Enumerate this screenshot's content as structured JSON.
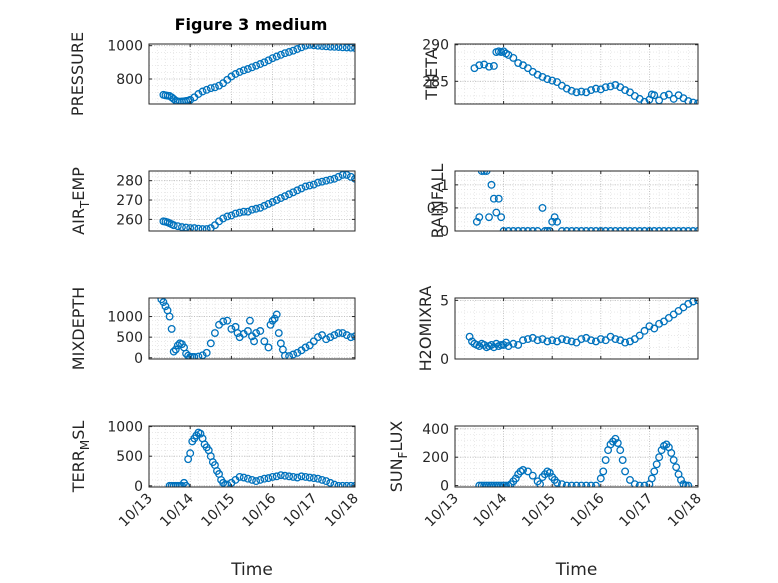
{
  "figure": {
    "title": "Figure 3 medium"
  },
  "chart_data": [
    {
      "type": "scatter",
      "id": "pressure",
      "ylabel": "PRESSURE",
      "title": "Figure 3 medium",
      "xlim": [
        0,
        5
      ],
      "ylim": [
        650,
        1010
      ],
      "yticks": [
        800,
        1000
      ],
      "yticklabels": [
        "800",
        "1000"
      ],
      "x": [
        0.35,
        0.4,
        0.45,
        0.5,
        0.55,
        0.6,
        0.65,
        0.7,
        0.75,
        0.8,
        0.85,
        0.9,
        0.95,
        1.0,
        1.1,
        1.2,
        1.3,
        1.4,
        1.5,
        1.6,
        1.7,
        1.8,
        1.9,
        2.0,
        2.1,
        2.2,
        2.3,
        2.4,
        2.5,
        2.6,
        2.7,
        2.8,
        2.9,
        3.0,
        3.1,
        3.2,
        3.3,
        3.4,
        3.5,
        3.6,
        3.7,
        3.8,
        3.9,
        4.0,
        4.1,
        4.2,
        4.3,
        4.4,
        4.5,
        4.6,
        4.7,
        4.8,
        4.9,
        5.0
      ],
      "y": [
        705,
        702,
        700,
        698,
        690,
        680,
        670,
        665,
        664,
        665,
        666,
        668,
        670,
        675,
        690,
        710,
        725,
        735,
        745,
        750,
        760,
        775,
        795,
        815,
        830,
        842,
        852,
        860,
        870,
        880,
        890,
        900,
        912,
        925,
        935,
        945,
        955,
        962,
        970,
        980,
        990,
        1000,
        1005,
        1003,
        1000,
        998,
        996,
        994,
        993,
        992,
        990,
        989,
        988,
        986
      ]
    },
    {
      "type": "scatter",
      "id": "theta",
      "ylabel": "THETA",
      "xlim": [
        0,
        5
      ],
      "ylim": [
        281.9,
        290.1
      ],
      "yticks": [
        285,
        290
      ],
      "yticklabels": [
        "285",
        "290"
      ],
      "x": [
        0.4,
        0.5,
        0.6,
        0.7,
        0.8,
        0.85,
        0.9,
        0.95,
        1.0,
        1.05,
        1.1,
        1.2,
        1.3,
        1.4,
        1.5,
        1.6,
        1.7,
        1.8,
        1.9,
        2.0,
        2.1,
        2.2,
        2.3,
        2.4,
        2.5,
        2.6,
        2.7,
        2.8,
        2.9,
        3.0,
        3.1,
        3.2,
        3.3,
        3.4,
        3.5,
        3.6,
        3.7,
        3.8,
        3.9,
        4.0,
        4.05,
        4.1,
        4.2,
        4.3,
        4.4,
        4.5,
        4.6,
        4.7,
        4.8,
        4.9,
        5.0
      ],
      "y": [
        286.8,
        287.2,
        287.3,
        287.0,
        287.1,
        289.0,
        289.1,
        289.0,
        289.1,
        288.8,
        288.6,
        288.2,
        287.5,
        287.2,
        286.8,
        286.3,
        285.9,
        285.6,
        285.3,
        285.1,
        284.9,
        284.4,
        284.0,
        283.7,
        283.5,
        283.6,
        283.5,
        283.8,
        284.0,
        283.9,
        284.2,
        284.3,
        284.5,
        284.2,
        283.8,
        283.5,
        283.0,
        282.6,
        282.2,
        282.5,
        283.2,
        283.1,
        282.4,
        283.0,
        283.2,
        282.6,
        283.1,
        282.7,
        282.3,
        282.1,
        282.0
      ]
    },
    {
      "type": "scatter",
      "id": "airtemp",
      "ylabel": "AIR",
      "ylabel_sub": "T",
      "ylabel_rest": "EMP",
      "xlim": [
        0,
        5
      ],
      "ylim": [
        254,
        285
      ],
      "yticks": [
        260,
        270,
        280
      ],
      "yticklabels": [
        "260",
        "270",
        "280"
      ],
      "x": [
        0.35,
        0.4,
        0.45,
        0.5,
        0.55,
        0.6,
        0.7,
        0.8,
        0.9,
        1.0,
        1.1,
        1.2,
        1.3,
        1.4,
        1.5,
        1.6,
        1.7,
        1.8,
        1.9,
        2.0,
        2.1,
        2.2,
        2.3,
        2.4,
        2.5,
        2.6,
        2.7,
        2.8,
        2.9,
        3.0,
        3.1,
        3.2,
        3.3,
        3.4,
        3.5,
        3.6,
        3.7,
        3.8,
        3.9,
        4.0,
        4.1,
        4.2,
        4.3,
        4.4,
        4.5,
        4.6,
        4.7,
        4.8,
        4.9,
        5.0
      ],
      "y": [
        259,
        258.8,
        258.5,
        258,
        257.5,
        257,
        256.5,
        256,
        255.8,
        255.5,
        255.5,
        255.2,
        255,
        255,
        255.5,
        257,
        259,
        260.5,
        261.5,
        262,
        263,
        263.5,
        264,
        264,
        265,
        265.5,
        266,
        267,
        268,
        269,
        270,
        271,
        272,
        273,
        274,
        275,
        276,
        277,
        277.5,
        278,
        279,
        279.5,
        280,
        280.5,
        281,
        282,
        283,
        283,
        282,
        281
      ]
    },
    {
      "type": "scatter",
      "id": "rainfall",
      "ylabel": "RAINFALL",
      "xlim": [
        0,
        5
      ],
      "ylim": [
        0,
        1.3
      ],
      "yticks": [
        0,
        0.5,
        1
      ],
      "yticklabels": [
        "0",
        "0.5",
        "1"
      ],
      "x": [
        0.45,
        0.5,
        0.55,
        0.6,
        0.65,
        0.7,
        0.75,
        0.8,
        0.85,
        0.9,
        0.95,
        1.0,
        1.1,
        1.2,
        1.3,
        1.4,
        1.5,
        1.6,
        1.7,
        1.8,
        1.85,
        1.9,
        1.95,
        2.0,
        2.05,
        2.1,
        2.2,
        2.3,
        2.4,
        2.5,
        2.6,
        2.7,
        2.8,
        2.9,
        3.0,
        3.1,
        3.2,
        3.3,
        3.4,
        3.5,
        3.6,
        3.7,
        3.8,
        3.9,
        4.0,
        4.1,
        4.2,
        4.3,
        4.4,
        4.5,
        4.6,
        4.7,
        4.8,
        4.9,
        5.0
      ],
      "y": [
        0.2,
        0.3,
        1.3,
        1.3,
        1.3,
        0.3,
        1.0,
        0.7,
        0.4,
        0.7,
        0.3,
        0,
        0,
        0,
        0,
        0,
        0,
        0,
        0,
        0.5,
        0,
        0,
        0,
        0.2,
        0.3,
        0.2,
        0,
        0,
        0,
        0,
        0,
        0,
        0,
        0,
        0,
        0,
        0,
        0,
        0,
        0,
        0,
        0,
        0,
        0,
        0,
        0,
        0,
        0,
        0,
        0,
        0,
        0,
        0,
        0,
        0
      ]
    },
    {
      "type": "scatter",
      "id": "mixdepth",
      "ylabel": "MIXDEPTH",
      "xlim": [
        0,
        5
      ],
      "ylim": [
        -30,
        1450
      ],
      "yticks": [
        0,
        500,
        1000
      ],
      "yticklabels": [
        "0",
        "500",
        "1000"
      ],
      "x": [
        0.3,
        0.35,
        0.4,
        0.45,
        0.5,
        0.55,
        0.6,
        0.65,
        0.7,
        0.75,
        0.8,
        0.85,
        0.9,
        0.95,
        1.0,
        1.05,
        1.1,
        1.2,
        1.3,
        1.4,
        1.5,
        1.6,
        1.7,
        1.8,
        1.9,
        2.0,
        2.1,
        2.15,
        2.2,
        2.3,
        2.4,
        2.45,
        2.5,
        2.55,
        2.6,
        2.7,
        2.8,
        2.9,
        2.95,
        3.0,
        3.05,
        3.1,
        3.15,
        3.2,
        3.25,
        3.3,
        3.4,
        3.5,
        3.6,
        3.7,
        3.8,
        3.9,
        4.0,
        4.1,
        4.2,
        4.3,
        4.4,
        4.5,
        4.6,
        4.7,
        4.8,
        4.9,
        5.0
      ],
      "y": [
        1420,
        1350,
        1250,
        1150,
        1000,
        700,
        150,
        200,
        300,
        350,
        330,
        250,
        100,
        50,
        20,
        20,
        20,
        30,
        60,
        120,
        350,
        600,
        800,
        880,
        900,
        700,
        750,
        600,
        500,
        580,
        650,
        900,
        520,
        400,
        600,
        650,
        400,
        250,
        800,
        900,
        950,
        1050,
        600,
        350,
        200,
        50,
        40,
        80,
        120,
        180,
        250,
        300,
        400,
        500,
        550,
        450,
        500,
        550,
        600,
        600,
        550,
        500,
        520
      ]
    },
    {
      "type": "scatter",
      "id": "h2omixra",
      "ylabel": "H2OMIXRA",
      "xlim": [
        0,
        5
      ],
      "ylim": [
        0,
        5.2
      ],
      "yticks": [
        0,
        5
      ],
      "yticklabels": [
        "0",
        "5"
      ],
      "x": [
        0.3,
        0.35,
        0.4,
        0.45,
        0.5,
        0.55,
        0.6,
        0.65,
        0.7,
        0.75,
        0.8,
        0.85,
        0.9,
        0.95,
        1.0,
        1.05,
        1.1,
        1.2,
        1.3,
        1.4,
        1.5,
        1.6,
        1.7,
        1.8,
        1.9,
        2.0,
        2.1,
        2.2,
        2.3,
        2.4,
        2.5,
        2.6,
        2.7,
        2.8,
        2.9,
        3.0,
        3.1,
        3.2,
        3.3,
        3.4,
        3.5,
        3.6,
        3.7,
        3.8,
        3.9,
        4.0,
        4.1,
        4.2,
        4.3,
        4.4,
        4.5,
        4.6,
        4.7,
        4.8,
        4.9,
        5.0
      ],
      "y": [
        1.9,
        1.5,
        1.3,
        1.2,
        1.1,
        1.3,
        1.2,
        1.0,
        1.1,
        1.2,
        1.0,
        1.3,
        1.1,
        1.2,
        1.2,
        1.4,
        1.1,
        1.3,
        1.2,
        1.6,
        1.7,
        1.8,
        1.6,
        1.7,
        1.5,
        1.6,
        1.5,
        1.7,
        1.6,
        1.5,
        1.4,
        1.7,
        1.8,
        1.6,
        1.5,
        1.7,
        1.6,
        1.9,
        1.7,
        1.6,
        1.4,
        1.5,
        1.7,
        2.0,
        2.4,
        2.8,
        2.6,
        3.0,
        3.2,
        3.5,
        3.8,
        4.1,
        4.4,
        4.7,
        4.9,
        5.0
      ]
    },
    {
      "type": "scatter",
      "id": "terrmsl",
      "ylabel": "TERR",
      "ylabel_sub": "M",
      "ylabel_rest": "SL",
      "xlim": [
        0,
        5
      ],
      "ylim": [
        -20,
        1010
      ],
      "yticks": [
        0,
        500,
        1000
      ],
      "yticklabels": [
        "0",
        "500",
        "1000"
      ],
      "x": [
        0.5,
        0.55,
        0.6,
        0.65,
        0.7,
        0.75,
        0.8,
        0.85,
        0.9,
        0.95,
        1.0,
        1.05,
        1.1,
        1.15,
        1.2,
        1.25,
        1.3,
        1.35,
        1.4,
        1.45,
        1.5,
        1.55,
        1.6,
        1.65,
        1.7,
        1.75,
        1.8,
        1.85,
        1.9,
        2.0,
        2.1,
        2.2,
        2.3,
        2.4,
        2.5,
        2.6,
        2.7,
        2.8,
        2.9,
        3.0,
        3.1,
        3.2,
        3.3,
        3.4,
        3.5,
        3.6,
        3.7,
        3.8,
        3.9,
        4.0,
        4.1,
        4.2,
        4.3,
        4.4,
        4.5,
        4.6,
        4.7,
        4.8,
        4.9,
        5.0
      ],
      "y": [
        0,
        0,
        0,
        0,
        0,
        0,
        0,
        50,
        0,
        450,
        550,
        750,
        800,
        850,
        900,
        880,
        800,
        700,
        650,
        600,
        500,
        400,
        350,
        250,
        200,
        100,
        50,
        20,
        20,
        50,
        100,
        150,
        140,
        120,
        100,
        80,
        100,
        120,
        130,
        150,
        160,
        180,
        170,
        160,
        150,
        140,
        160,
        150,
        140,
        130,
        120,
        100,
        80,
        50,
        20,
        0,
        0,
        0,
        0,
        0
      ]
    },
    {
      "type": "scatter",
      "id": "sunflux",
      "ylabel": "SUN",
      "ylabel_sub": "F",
      "ylabel_rest": "LUX",
      "xlim": [
        0,
        5
      ],
      "ylim": [
        -10,
        420
      ],
      "yticks": [
        0,
        200,
        400
      ],
      "yticklabels": [
        "0",
        "200",
        "400"
      ],
      "x": [
        0.5,
        0.55,
        0.6,
        0.65,
        0.7,
        0.75,
        0.8,
        0.85,
        0.9,
        0.95,
        1.0,
        1.05,
        1.1,
        1.15,
        1.2,
        1.25,
        1.3,
        1.35,
        1.4,
        1.5,
        1.6,
        1.7,
        1.75,
        1.8,
        1.85,
        1.9,
        1.95,
        2.0,
        2.05,
        2.1,
        2.2,
        2.3,
        2.4,
        2.5,
        2.6,
        2.7,
        2.8,
        2.9,
        3.0,
        3.05,
        3.1,
        3.15,
        3.2,
        3.25,
        3.3,
        3.35,
        3.4,
        3.45,
        3.5,
        3.6,
        3.7,
        3.8,
        3.9,
        4.0,
        4.05,
        4.1,
        4.15,
        4.2,
        4.25,
        4.3,
        4.35,
        4.4,
        4.45,
        4.5,
        4.55,
        4.6,
        4.65,
        4.7,
        4.75,
        4.8
      ],
      "y": [
        0,
        0,
        0,
        0,
        0,
        0,
        0,
        0,
        0,
        0,
        0,
        0,
        0,
        10,
        30,
        50,
        80,
        100,
        110,
        100,
        70,
        30,
        10,
        60,
        80,
        100,
        90,
        60,
        40,
        20,
        10,
        0,
        0,
        0,
        0,
        0,
        0,
        0,
        50,
        100,
        180,
        250,
        290,
        310,
        330,
        300,
        250,
        180,
        100,
        40,
        10,
        0,
        0,
        10,
        50,
        100,
        150,
        200,
        250,
        280,
        290,
        270,
        230,
        180,
        130,
        80,
        40,
        10,
        0,
        0
      ]
    }
  ],
  "xaxis": {
    "ticklabels": [
      "10/13",
      "10/14",
      "10/15",
      "10/16",
      "10/17",
      "10/18"
    ],
    "tickvalues": [
      0,
      1,
      2,
      3,
      4,
      5
    ],
    "label": "Time"
  },
  "colors": {
    "marker": "#0072BD",
    "axis": "#262626",
    "grid": "#b9b9b9"
  }
}
